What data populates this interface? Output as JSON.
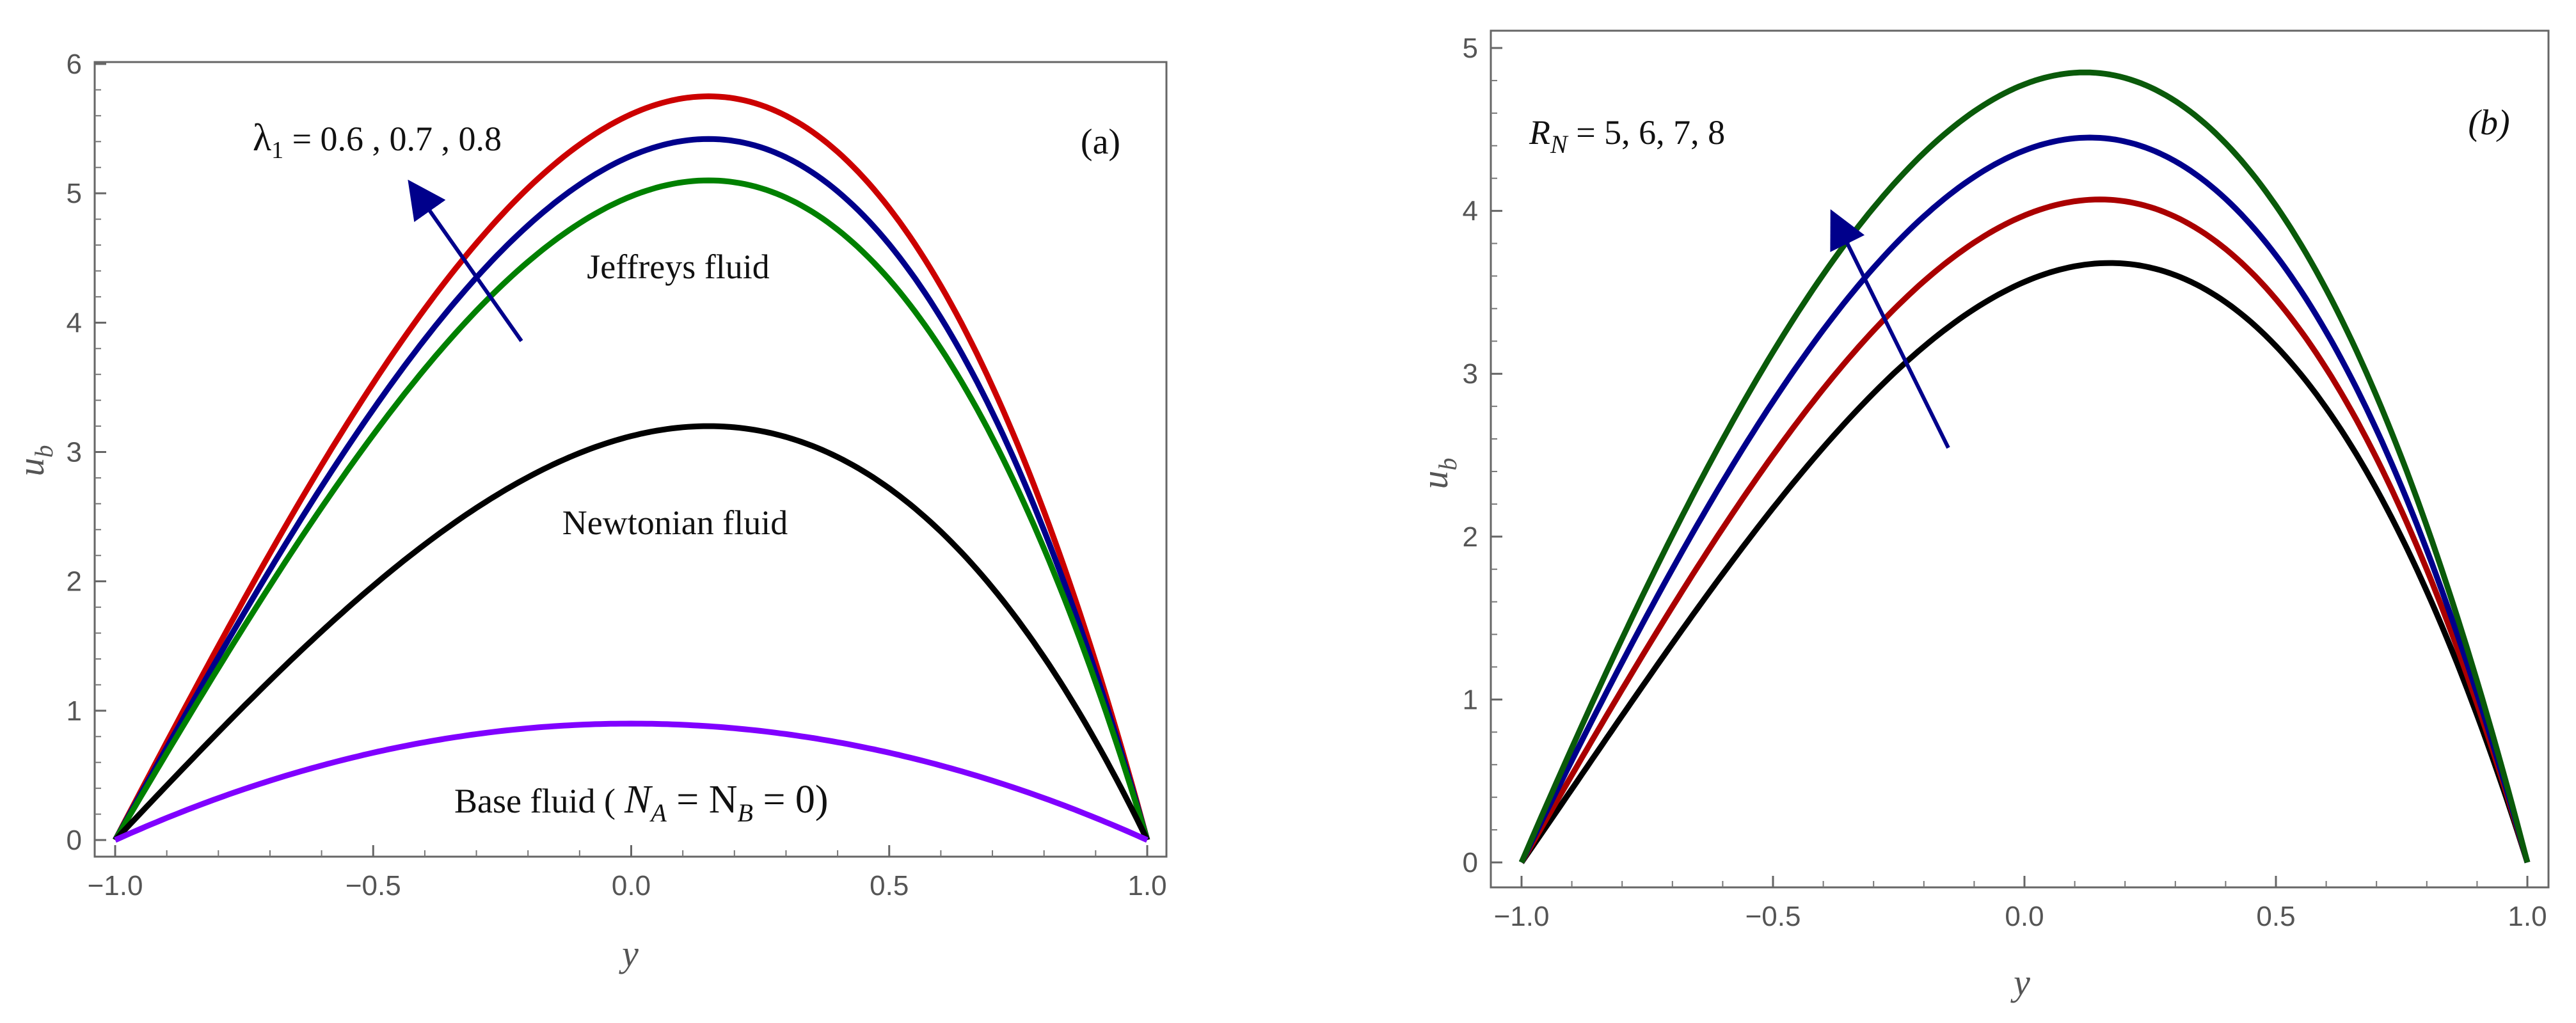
{
  "chart_data": [
    {
      "type": "line",
      "panel_label": "(a)",
      "xlabel": "y",
      "ylabel_main": "u",
      "ylabel_sub": "b",
      "xlim": [
        -1.0,
        1.0
      ],
      "ylim": [
        0,
        6
      ],
      "x_ticks": [
        "-1.0",
        "-0.5",
        "0.0",
        "0.5",
        "1.0"
      ],
      "y_ticks": [
        "0",
        "1",
        "2",
        "3",
        "4",
        "5",
        "6"
      ],
      "series": [
        {
          "name": "λ1 = 0.8",
          "color": "#cc0000",
          "peak_x": 0.15,
          "peak_y": 5.75
        },
        {
          "name": "λ1 = 0.7",
          "color": "#00008b",
          "peak_x": 0.15,
          "peak_y": 5.42
        },
        {
          "name": "λ1 = 0.6",
          "color": "#008000",
          "peak_x": 0.15,
          "peak_y": 5.1
        },
        {
          "name": "Newtonian fluid",
          "color": "#000000",
          "peak_x": 0.15,
          "peak_y": 3.2
        },
        {
          "name": "Base fluid",
          "color": "#8000ff",
          "peak_x": 0.0,
          "peak_y": 0.9
        }
      ],
      "annotations": {
        "lambda_label": "λ",
        "lambda_sub": "1",
        "lambda_values": " = 0.6 , 0.7 , 0.8",
        "jeffreys": "Jeffreys fluid",
        "newtonian": "Newtonian fluid",
        "base_prefix": "Base fluid (",
        "base_eq": "N",
        "base_sub_a": "A",
        "base_mid": " = N",
        "base_sub_b": "B",
        "base_end": " = 0)"
      },
      "arrow_color": "#00008b"
    },
    {
      "type": "line",
      "panel_label": "(b)",
      "xlabel": "y",
      "ylabel_main": "u",
      "ylabel_sub": "b",
      "xlim": [
        -1.0,
        1.0
      ],
      "ylim": [
        0,
        5
      ],
      "x_ticks": [
        "-1.0",
        "-0.5",
        "0.0",
        "0.5",
        "1.0"
      ],
      "y_ticks": [
        "0",
        "1",
        "2",
        "3",
        "4",
        "5"
      ],
      "series": [
        {
          "name": "RN = 5",
          "color": "#000000",
          "peak_x": 0.17,
          "peak_y": 3.68
        },
        {
          "name": "RN = 6",
          "color": "#aa0000",
          "peak_x": 0.15,
          "peak_y": 4.07
        },
        {
          "name": "RN = 7",
          "color": "#00008b",
          "peak_x": 0.13,
          "peak_y": 4.45
        },
        {
          "name": "RN = 8",
          "color": "#0a5a0a",
          "peak_x": 0.12,
          "peak_y": 4.85
        }
      ],
      "annotations": {
        "rn_label": "R",
        "rn_sub": "N",
        "rn_values": " = 5, 6, 7, 8"
      },
      "arrow_color": "#00008b"
    }
  ]
}
